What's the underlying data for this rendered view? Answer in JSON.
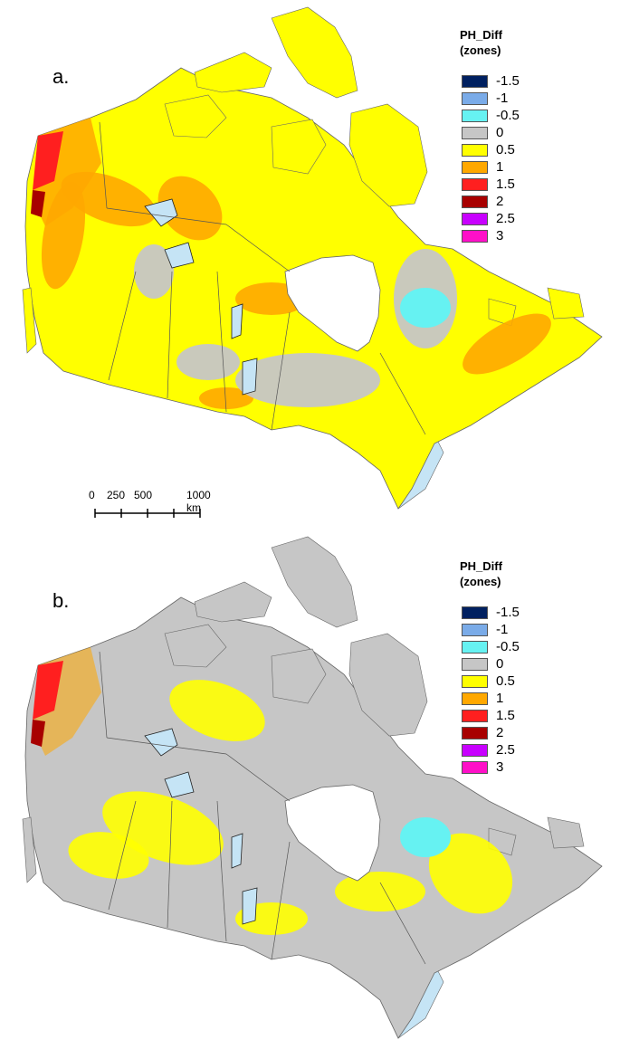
{
  "legend": {
    "title_line1": "PH_Diff",
    "title_line2": "(zones)",
    "items": [
      {
        "label": "-1.5",
        "color": "#002060"
      },
      {
        "label": "-1",
        "color": "#7aabe8"
      },
      {
        "label": "-0.5",
        "color": "#66f2f2"
      },
      {
        "label": "0",
        "color": "#c6c6c6"
      },
      {
        "label": "0.5",
        "color": "#ffff00"
      },
      {
        "label": "1",
        "color": "#ffa800"
      },
      {
        "label": "1.5",
        "color": "#ff1f1f"
      },
      {
        "label": "2",
        "color": "#a80000"
      },
      {
        "label": "2.5",
        "color": "#c800ff"
      },
      {
        "label": "3",
        "color": "#ff10c8"
      }
    ]
  },
  "panels": [
    {
      "label": "a.",
      "dominant_color": "#ffff00",
      "secondary_color": "#ffa800"
    },
    {
      "label": "b.",
      "dominant_color": "#c6c6c6",
      "secondary_color": "#ffff00"
    }
  ],
  "scalebar": {
    "labels": [
      "0",
      "250",
      "500",
      "1000 km"
    ]
  },
  "colors": {
    "water": "#c5e4f5",
    "boundary": "#555555",
    "lake_dark": "#222222",
    "land_edge": "#666666"
  }
}
